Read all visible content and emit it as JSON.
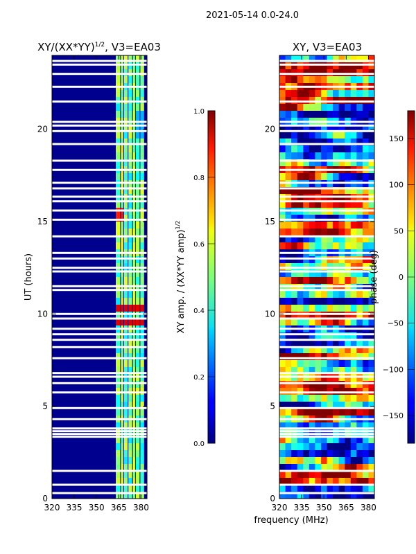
{
  "suptitle": "2021-05-14 0.0-24.0",
  "xlabel": "frequency (MHz)",
  "chart_data": [
    {
      "type": "heatmap",
      "title_base": "XY/(XX*YY)",
      "title_exp": "1/2",
      "title_suffix": ", V3=EA03",
      "ylabel": "UT (hours)",
      "xlim": [
        320,
        384
      ],
      "ylim": [
        0,
        24
      ],
      "xticks": [
        320,
        335,
        350,
        365,
        380
      ],
      "yticks": [
        0,
        5,
        10,
        15,
        20
      ],
      "colorbar": {
        "label_base": "XY amp. / (XX*YY amp)",
        "label_exp": "1/2",
        "range": [
          0.0,
          1.0
        ],
        "ticks": [
          "0.0",
          "0.2",
          "0.4",
          "0.6",
          "0.8",
          "1.0"
        ],
        "tick_values": [
          0.0,
          0.2,
          0.4,
          0.6,
          0.8,
          1.0
        ]
      }
    },
    {
      "type": "heatmap",
      "title": "XY, V3=EA03",
      "xlim": [
        320,
        384
      ],
      "ylim": [
        0,
        24
      ],
      "xticks": [
        320,
        335,
        350,
        365,
        380
      ],
      "yticks": [
        0,
        5,
        10,
        15,
        20
      ],
      "colorbar": {
        "label": "phase (deg)",
        "range": [
          -180,
          180
        ],
        "ticks": [
          "150",
          "100",
          "50",
          "0",
          "−50",
          "−100",
          "−150"
        ],
        "tick_values": [
          150,
          100,
          50,
          0,
          -50,
          -100,
          -150
        ]
      }
    }
  ],
  "flagged_rows_ut": [
    0.3,
    0.75,
    1.5,
    3.35,
    3.5,
    3.65,
    3.8,
    4.3,
    4.9,
    5.75,
    6.25,
    6.6,
    6.8,
    7.6,
    8.2,
    8.6,
    8.9,
    9.2,
    9.75,
    10.0,
    11.3,
    11.5,
    12.3,
    12.5,
    13.0,
    13.3,
    14.2,
    15.1,
    15.6,
    16.1,
    16.35,
    16.8,
    17.1,
    17.8,
    18.3,
    19.2,
    19.9,
    20.2,
    20.4,
    21.5,
    22.3,
    23.0,
    23.5,
    23.7
  ]
}
